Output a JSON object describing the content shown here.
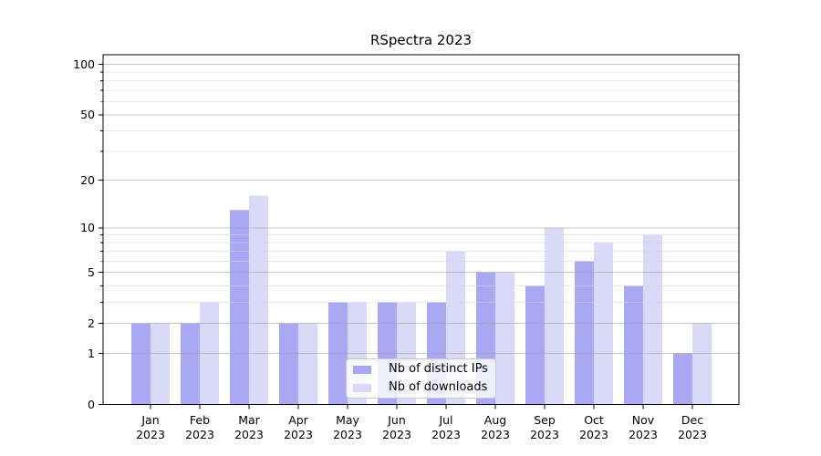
{
  "chart_data": {
    "type": "bar",
    "title": "RSpectra 2023",
    "categories": [
      "Jan 2023",
      "Feb 2023",
      "Mar 2023",
      "Apr 2023",
      "May 2023",
      "Jun 2023",
      "Jul 2023",
      "Aug 2023",
      "Sep 2023",
      "Oct 2023",
      "Nov 2023",
      "Dec 2023"
    ],
    "series": [
      {
        "name": "Nb of distinct IPs",
        "color": "#a8a8f5",
        "values": [
          2,
          2,
          13,
          2,
          3,
          3,
          3,
          5,
          4,
          6,
          4,
          1
        ]
      },
      {
        "name": "Nb of downloads",
        "color": "#d9d9f8",
        "values": [
          2,
          3,
          16,
          2,
          3,
          3,
          7,
          5,
          10,
          8,
          9,
          2
        ]
      }
    ],
    "xlabel": "",
    "ylabel": "",
    "y_scale": "log1p",
    "ylim": [
      0,
      115
    ],
    "y_ticks": [
      0,
      1,
      2,
      5,
      10,
      20,
      50,
      100
    ],
    "y_minor_ticks": [
      3,
      4,
      6,
      7,
      8,
      9,
      30,
      40,
      60,
      70,
      80,
      90
    ],
    "grid": true,
    "legend_position": "lower-center",
    "colors": {
      "major_grid": "#c8c8c8",
      "minor_grid": "#e9e9e9",
      "axis": "#000000",
      "background": "#ffffff"
    }
  }
}
